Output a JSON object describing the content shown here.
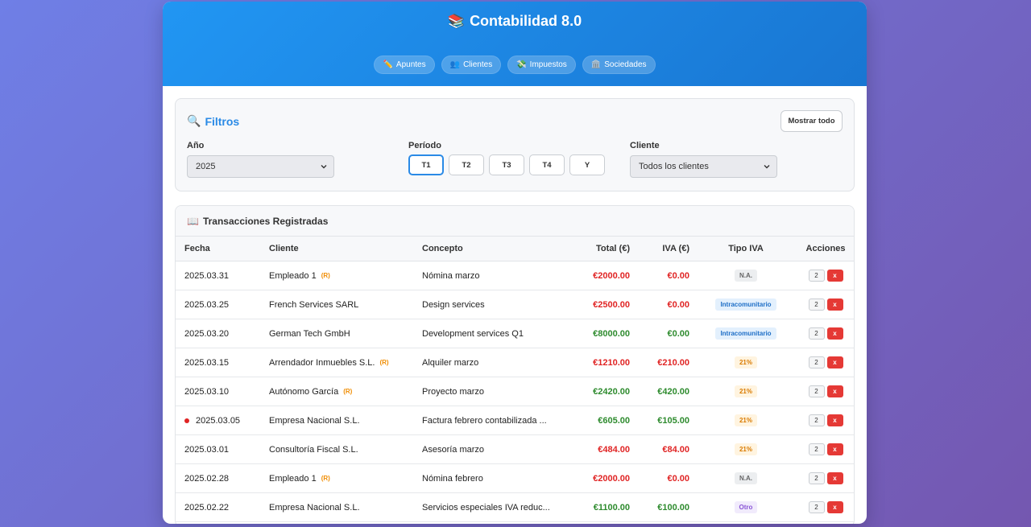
{
  "header": {
    "title": "Contabilidad 8.0",
    "logo_glyph": "📚"
  },
  "nav": [
    {
      "icon": "✏️",
      "label": "Apuntes"
    },
    {
      "icon": "👥",
      "label": "Clientes"
    },
    {
      "icon": "💸",
      "label": "Impuestos"
    },
    {
      "icon": "🏛️",
      "label": "Sociedades"
    }
  ],
  "filters": {
    "title": "Filtros",
    "icon": "🔍",
    "show_all": "Mostrar todo",
    "year_label": "Año",
    "year_value": "2025",
    "period_label": "Período",
    "periods": [
      "T1",
      "T2",
      "T3",
      "T4",
      "Y"
    ],
    "active_period": "T1",
    "client_label": "Cliente",
    "client_value": "Todos los clientes"
  },
  "transactions": {
    "title": "Transacciones Registradas",
    "icon": "📖",
    "columns": {
      "fecha": "Fecha",
      "cliente": "Cliente",
      "concepto": "Concepto",
      "total": "Total (€)",
      "iva": "IVA (€)",
      "tipo": "Tipo IVA",
      "acciones": "Acciones"
    },
    "edit_label": "2",
    "delete_label": "x",
    "rows": [
      {
        "fecha": "2025.03.31",
        "cliente": "Empleado 1",
        "tag": "(R)",
        "concepto": "Nómina marzo",
        "total": "€2000.00",
        "iva": "€0.00",
        "tipo": "N.A.",
        "tipo_class": "b-na",
        "color": "red",
        "dot": false
      },
      {
        "fecha": "2025.03.25",
        "cliente": "French Services SARL",
        "tag": "",
        "concepto": "Design services",
        "total": "€2500.00",
        "iva": "€0.00",
        "tipo": "Intracomunitario",
        "tipo_class": "b-intra",
        "color": "red",
        "dot": false
      },
      {
        "fecha": "2025.03.20",
        "cliente": "German Tech GmbH",
        "tag": "",
        "concepto": "Development services Q1",
        "total": "€8000.00",
        "iva": "€0.00",
        "tipo": "Intracomunitario",
        "tipo_class": "b-intra",
        "color": "green",
        "dot": false
      },
      {
        "fecha": "2025.03.15",
        "cliente": "Arrendador Inmuebles S.L.",
        "tag": "(R)",
        "concepto": "Alquiler marzo",
        "total": "€1210.00",
        "iva": "€210.00",
        "tipo": "21%",
        "tipo_class": "b-21",
        "color": "red",
        "dot": false
      },
      {
        "fecha": "2025.03.10",
        "cliente": "Autónomo García",
        "tag": "(R)",
        "concepto": "Proyecto marzo",
        "total": "€2420.00",
        "iva": "€420.00",
        "tipo": "21%",
        "tipo_class": "b-21",
        "color": "green",
        "dot": false
      },
      {
        "fecha": "2025.03.05",
        "cliente": "Empresa Nacional S.L.",
        "tag": "",
        "concepto": "Factura febrero contabilizada ...",
        "total": "€605.00",
        "iva": "€105.00",
        "tipo": "21%",
        "tipo_class": "b-21",
        "color": "green",
        "dot": true
      },
      {
        "fecha": "2025.03.01",
        "cliente": "Consultoría Fiscal S.L.",
        "tag": "",
        "concepto": "Asesoría marzo",
        "total": "€484.00",
        "iva": "€84.00",
        "tipo": "21%",
        "tipo_class": "b-21",
        "color": "red",
        "dot": false
      },
      {
        "fecha": "2025.02.28",
        "cliente": "Empleado 1",
        "tag": "(R)",
        "concepto": "Nómina febrero",
        "total": "€2000.00",
        "iva": "€0.00",
        "tipo": "N.A.",
        "tipo_class": "b-na",
        "color": "red",
        "dot": false
      },
      {
        "fecha": "2025.02.22",
        "cliente": "Empresa Nacional S.L.",
        "tag": "",
        "concepto": "Servicios especiales IVA reduc...",
        "total": "€1100.00",
        "iva": "€100.00",
        "tipo": "Otro",
        "tipo_class": "b-otro",
        "color": "green",
        "dot": false
      }
    ]
  }
}
